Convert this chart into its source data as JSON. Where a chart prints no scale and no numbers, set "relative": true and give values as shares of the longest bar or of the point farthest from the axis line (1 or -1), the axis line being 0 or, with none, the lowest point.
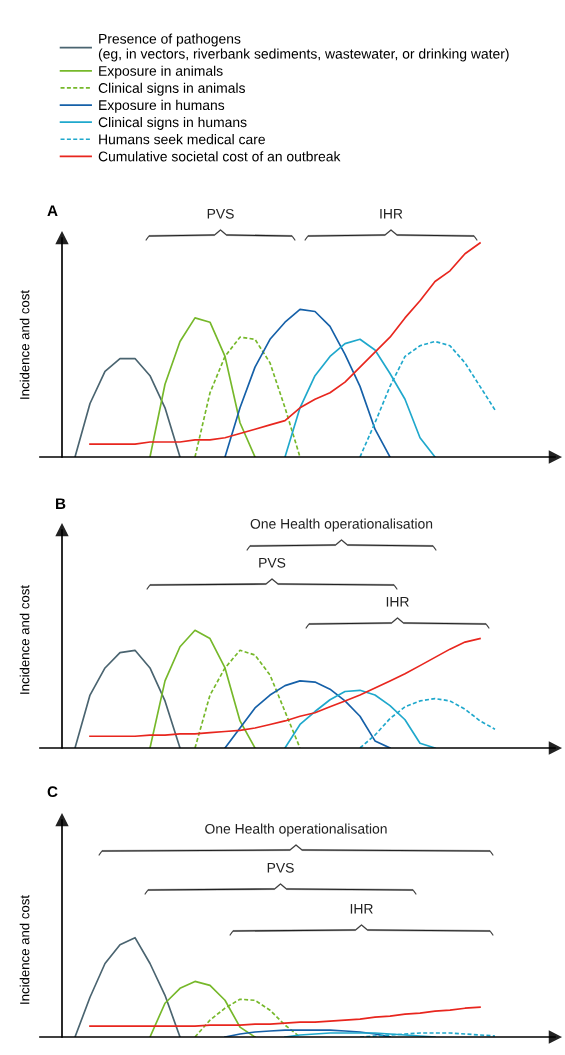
{
  "chart_data": [
    {
      "type": "line",
      "title": "A",
      "ylabel": "Incidence and cost",
      "relative": true,
      "legend": "top",
      "marker": "none",
      "categories": [
        null,
        null,
        null,
        null,
        null,
        null,
        null,
        null,
        null,
        null,
        null,
        null,
        null,
        null,
        null,
        null,
        null,
        null,
        null,
        null,
        null,
        null,
        null,
        null,
        null,
        null,
        null,
        null,
        null
      ],
      "annotations": [
        "PVS",
        "IHR"
      ],
      "series": [
        {
          "name": "Presence of pathogens\n(eg, in vectors, riverbank sediments, wastewater, or drinking water)",
          "color": "#4a6470",
          "line_style": "solid",
          "values": [
            0,
            0.25,
            0.4,
            0.46,
            0.46,
            0.38,
            0.23,
            0,
            null,
            null,
            null,
            null,
            null,
            null,
            null,
            null,
            null,
            null,
            null,
            null,
            null,
            null,
            null,
            null,
            null,
            null,
            null,
            null,
            null
          ]
        },
        {
          "name": "Exposure in animals",
          "color": "#76b82a",
          "line_style": "solid",
          "values": [
            null,
            null,
            null,
            null,
            null,
            0,
            0.34,
            0.54,
            0.65,
            0.63,
            0.47,
            0.16,
            0,
            null,
            null,
            null,
            null,
            null,
            null,
            null,
            null,
            null,
            null,
            null,
            null,
            null,
            null,
            null,
            null
          ]
        },
        {
          "name": "Clinical signs in animals",
          "color": "#76b82a",
          "line_style": "dashed",
          "values": [
            null,
            null,
            null,
            null,
            null,
            null,
            null,
            null,
            0,
            0.3,
            0.47,
            0.56,
            0.55,
            0.44,
            0.23,
            0,
            null,
            null,
            null,
            null,
            null,
            null,
            null,
            null,
            null,
            null,
            null,
            null,
            null
          ]
        },
        {
          "name": "Exposure in humans",
          "color": "#1560a8",
          "line_style": "solid",
          "values": [
            null,
            null,
            null,
            null,
            null,
            null,
            null,
            null,
            null,
            null,
            0,
            0.23,
            0.42,
            0.55,
            0.63,
            0.69,
            0.68,
            0.61,
            0.48,
            0.33,
            0.13,
            0,
            null,
            null,
            null,
            null,
            null,
            null,
            null
          ]
        },
        {
          "name": "Clinical signs in humans",
          "color": "#1fa8cc",
          "line_style": "solid",
          "values": [
            null,
            null,
            null,
            null,
            null,
            null,
            null,
            null,
            null,
            null,
            null,
            null,
            null,
            null,
            0,
            0.23,
            0.38,
            0.47,
            0.53,
            0.55,
            0.5,
            0.39,
            0.27,
            0.09,
            0,
            null,
            null,
            null,
            null
          ]
        },
        {
          "name": "Humans seek medical care",
          "color": "#1fa8cc",
          "line_style": "dashed",
          "values": [
            null,
            null,
            null,
            null,
            null,
            null,
            null,
            null,
            null,
            null,
            null,
            null,
            null,
            null,
            null,
            null,
            null,
            null,
            null,
            0,
            0.16,
            0.33,
            0.47,
            0.52,
            0.54,
            0.52,
            0.44,
            0.33,
            0.22
          ]
        },
        {
          "name": "Cumulative societal cost of an outbreak",
          "color": "#e8261e",
          "line_style": "solid",
          "values": [
            null,
            0.06,
            0.06,
            0.06,
            0.06,
            0.07,
            0.07,
            0.07,
            0.08,
            0.08,
            0.09,
            0.11,
            0.13,
            0.15,
            0.17,
            0.23,
            0.27,
            0.3,
            0.35,
            0.42,
            0.49,
            0.56,
            0.65,
            0.73,
            0.82,
            0.87,
            0.95,
            1.0,
            null
          ]
        }
      ]
    },
    {
      "type": "line",
      "title": "B",
      "ylabel": "Incidence and cost",
      "relative": true,
      "marker": "none",
      "categories": [
        null,
        null,
        null,
        null,
        null,
        null,
        null,
        null,
        null,
        null,
        null,
        null,
        null,
        null,
        null,
        null,
        null,
        null,
        null,
        null,
        null,
        null,
        null,
        null,
        null,
        null,
        null,
        null,
        null
      ],
      "annotations": [
        "One Health operationalisation",
        "PVS",
        "IHR"
      ],
      "series": [
        {
          "color": "#4a6470",
          "line_style": "solid",
          "values": [
            0,
            0.45,
            0.68,
            0.81,
            0.83,
            0.68,
            0.4,
            0,
            null,
            null,
            null,
            null,
            null,
            null,
            null,
            null,
            null,
            null,
            null,
            null,
            null,
            null,
            null,
            null,
            null,
            null,
            null,
            null,
            null
          ]
        },
        {
          "color": "#76b82a",
          "line_style": "solid",
          "values": [
            null,
            null,
            null,
            null,
            null,
            0,
            0.57,
            0.86,
            1.0,
            0.93,
            0.68,
            0.23,
            0,
            null,
            null,
            null,
            null,
            null,
            null,
            null,
            null,
            null,
            null,
            null,
            null,
            null,
            null,
            null,
            null
          ]
        },
        {
          "color": "#76b82a",
          "line_style": "dashed",
          "values": [
            null,
            null,
            null,
            null,
            null,
            null,
            null,
            null,
            0,
            0.45,
            0.68,
            0.83,
            0.79,
            0.62,
            0.31,
            0,
            null,
            null,
            null,
            null,
            null,
            null,
            null,
            null,
            null,
            null,
            null,
            null,
            null
          ]
        },
        {
          "color": "#1560a8",
          "line_style": "solid",
          "values": [
            null,
            null,
            null,
            null,
            null,
            null,
            null,
            null,
            null,
            null,
            0,
            0.17,
            0.34,
            0.45,
            0.53,
            0.57,
            0.56,
            0.5,
            0.4,
            0.27,
            0.06,
            0,
            null,
            null,
            null,
            null,
            null,
            null,
            null
          ]
        },
        {
          "color": "#1fa8cc",
          "line_style": "solid",
          "values": [
            null,
            null,
            null,
            null,
            null,
            null,
            null,
            null,
            null,
            null,
            null,
            null,
            null,
            null,
            0,
            0.2,
            0.31,
            0.41,
            0.48,
            0.49,
            0.45,
            0.36,
            0.24,
            0.04,
            0,
            null,
            null,
            null,
            null
          ]
        },
        {
          "color": "#1fa8cc",
          "line_style": "dashed",
          "values": [
            null,
            null,
            null,
            null,
            null,
            null,
            null,
            null,
            null,
            null,
            null,
            null,
            null,
            null,
            null,
            null,
            null,
            null,
            null,
            0,
            0.11,
            0.25,
            0.35,
            0.4,
            0.42,
            0.4,
            0.33,
            0.23,
            0.16
          ]
        },
        {
          "color": "#e8261e",
          "line_style": "solid",
          "values": [
            null,
            0.1,
            0.1,
            0.1,
            0.1,
            0.11,
            0.11,
            0.12,
            0.12,
            0.13,
            0.14,
            0.15,
            0.17,
            0.2,
            0.23,
            0.27,
            0.3,
            0.35,
            0.4,
            0.45,
            0.51,
            0.57,
            0.63,
            0.7,
            0.77,
            0.84,
            0.9,
            0.93,
            null
          ]
        }
      ]
    },
    {
      "type": "line",
      "title": "C",
      "ylabel": "Incidence and cost",
      "relative": true,
      "marker": "none",
      "categories": [
        null,
        null,
        null,
        null,
        null,
        null,
        null,
        null,
        null,
        null,
        null,
        null,
        null,
        null,
        null,
        null,
        null,
        null,
        null,
        null,
        null,
        null,
        null,
        null,
        null,
        null,
        null,
        null,
        null
      ],
      "annotations": [
        "One Health operationalisation",
        "PVS",
        "IHR"
      ],
      "series": [
        {
          "color": "#4a6470",
          "line_style": "solid",
          "values": [
            0,
            0.4,
            0.74,
            0.93,
            1.0,
            0.74,
            0.42,
            0,
            null,
            null,
            null,
            null,
            null,
            null,
            null,
            null,
            null,
            null,
            null,
            null,
            null,
            null,
            null,
            null,
            null,
            null,
            null,
            null,
            null
          ]
        },
        {
          "color": "#76b82a",
          "line_style": "solid",
          "values": [
            null,
            null,
            null,
            null,
            null,
            0,
            0.34,
            0.49,
            0.56,
            0.52,
            0.37,
            0.1,
            0,
            null,
            null,
            null,
            null,
            null,
            null,
            null,
            null,
            null,
            null,
            null,
            null,
            null,
            null,
            null,
            null
          ]
        },
        {
          "color": "#76b82a",
          "line_style": "dashed",
          "values": [
            null,
            null,
            null,
            null,
            null,
            null,
            null,
            null,
            0,
            0.17,
            0.29,
            0.38,
            0.37,
            0.27,
            0.12,
            0,
            null,
            null,
            null,
            null,
            null,
            null,
            null,
            null,
            null,
            null,
            null,
            null,
            null
          ]
        },
        {
          "color": "#1560a8",
          "line_style": "solid",
          "values": [
            null,
            null,
            null,
            null,
            null,
            null,
            null,
            null,
            null,
            null,
            0,
            0.03,
            0.05,
            0.06,
            0.07,
            0.07,
            0.07,
            0.07,
            0.06,
            0.05,
            0.03,
            0,
            null,
            null,
            null,
            null,
            null,
            null,
            null
          ]
        },
        {
          "color": "#1fa8cc",
          "line_style": "solid",
          "values": [
            null,
            null,
            null,
            null,
            null,
            null,
            null,
            null,
            null,
            null,
            null,
            null,
            null,
            null,
            0,
            0.02,
            0.03,
            0.04,
            0.04,
            0.04,
            0.04,
            0.03,
            0.02,
            0.01,
            0,
            null,
            null,
            null,
            null
          ]
        },
        {
          "color": "#1fa8cc",
          "line_style": "dashed",
          "values": [
            null,
            null,
            null,
            null,
            null,
            null,
            null,
            null,
            null,
            null,
            null,
            null,
            null,
            null,
            null,
            null,
            null,
            null,
            null,
            0,
            0.01,
            0.02,
            0.03,
            0.04,
            0.04,
            0.04,
            0.03,
            0.02,
            0.01
          ]
        },
        {
          "color": "#e8261e",
          "line_style": "solid",
          "values": [
            null,
            0.11,
            0.11,
            0.11,
            0.11,
            0.11,
            0.11,
            0.11,
            0.11,
            0.12,
            0.12,
            0.12,
            0.13,
            0.13,
            0.14,
            0.15,
            0.15,
            0.16,
            0.17,
            0.18,
            0.2,
            0.21,
            0.23,
            0.24,
            0.26,
            0.27,
            0.29,
            0.3,
            null
          ]
        }
      ]
    }
  ]
}
